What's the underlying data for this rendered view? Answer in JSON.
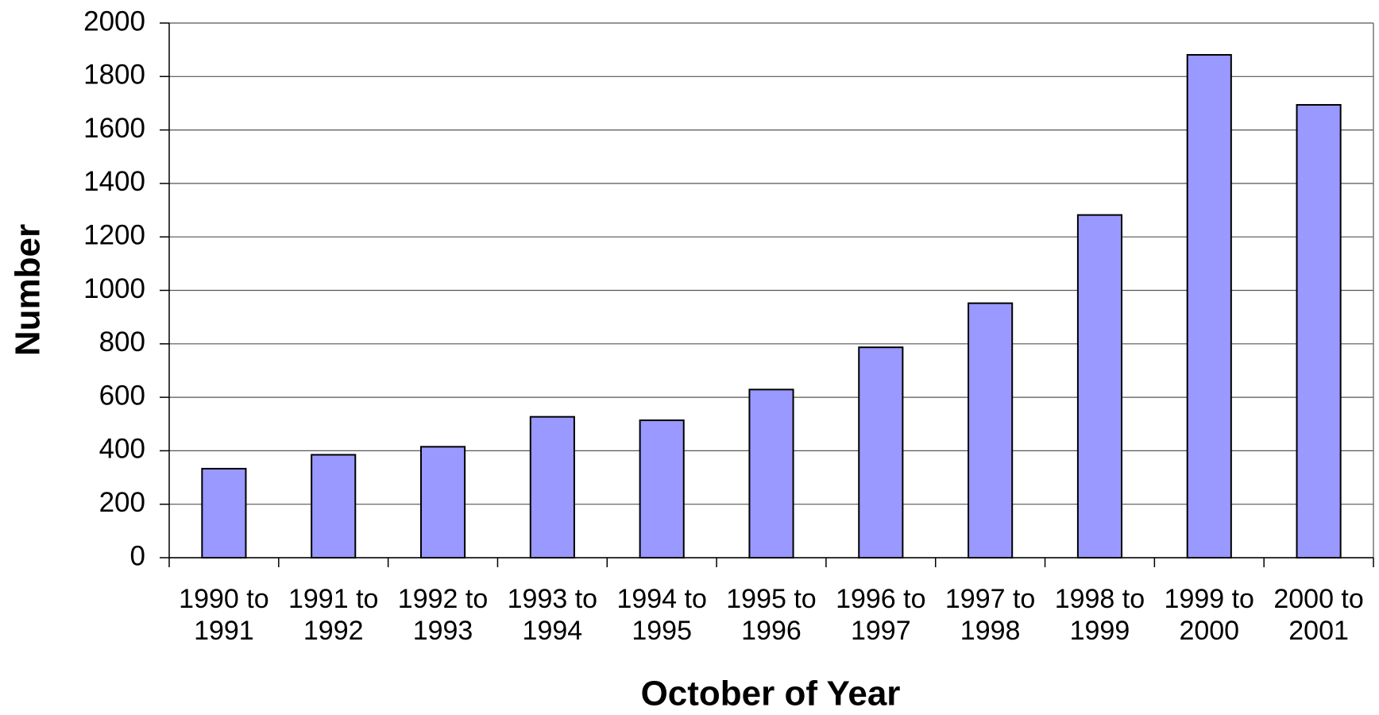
{
  "chart_data": {
    "type": "bar",
    "x_label": "October of Year",
    "y_label": "Number",
    "categories": [
      "1990 to 1991",
      "1991 to 1992",
      "1992 to 1993",
      "1993 to 1994",
      "1994 to 1995",
      "1995 to 1996",
      "1996 to 1997",
      "1997 to 1998",
      "1998 to 1999",
      "1999 to 2000",
      "2000 to 2001"
    ],
    "values": [
      333,
      385,
      415,
      527,
      514,
      629,
      787,
      952,
      1282,
      1881,
      1694
    ],
    "color": "#9999ff",
    "ylim": [
      0,
      2000
    ],
    "yticks": [
      0,
      200,
      400,
      600,
      800,
      1000,
      1200,
      1400,
      1600,
      1800,
      2000
    ],
    "grid": true
  }
}
